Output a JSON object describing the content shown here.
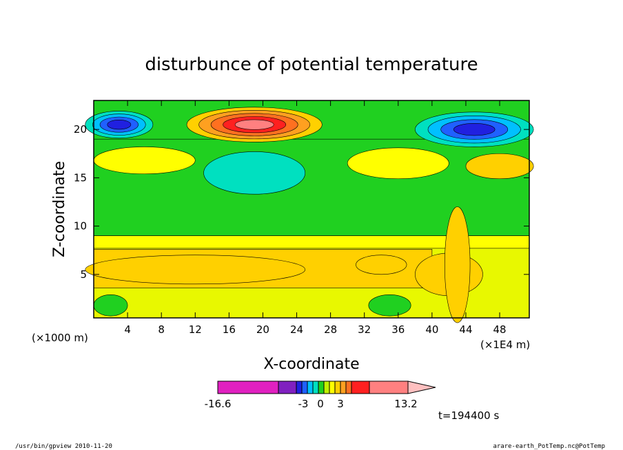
{
  "chart_data": {
    "type": "heatmap",
    "title": "disturbunce of potential temperature",
    "xlabel": "X-coordinate",
    "ylabel": "Z-coordinate",
    "x_unit": "(×1000 m)",
    "x_scale_note": "(×1E4 m)",
    "time_label": "t=194400 s",
    "xlim": [
      0,
      51.5
    ],
    "ylim": [
      0.5,
      23
    ],
    "x_ticks": [
      4,
      8,
      12,
      16,
      20,
      24,
      28,
      32,
      36,
      40,
      44,
      48
    ],
    "y_ticks": [
      5,
      10,
      15,
      20
    ],
    "colorbar": {
      "min_label": "-16.6",
      "max_label": "13.2",
      "tick_labels": [
        "-3",
        "0",
        "3"
      ],
      "colors": [
        "#e020c0",
        "#8020c0",
        "#2020e0",
        "#2060ff",
        "#00c0ff",
        "#00e0c0",
        "#20d020",
        "#c0f000",
        "#ffff00",
        "#ffd000",
        "#ffa020",
        "#ff7020",
        "#ff2020",
        "#ff8080",
        "#ffc0c0"
      ]
    },
    "features": [
      {
        "name": "warm-core",
        "x": 19,
        "z": 20.5,
        "rx": 8,
        "rz": 1.8,
        "value": 10
      },
      {
        "name": "cold-upper-left",
        "x": 3,
        "z": 20.5,
        "rx": 4,
        "rz": 1.4,
        "value": -8
      },
      {
        "name": "cold-upper-right",
        "x": 45,
        "z": 20,
        "rx": 7,
        "rz": 1.8,
        "value": -8
      },
      {
        "name": "cold-mid",
        "x": 19,
        "z": 15.5,
        "rx": 6,
        "rz": 2.2,
        "value": -2
      },
      {
        "name": "warm-low",
        "x": 12,
        "z": 5.5,
        "rx": 13,
        "rz": 1.5,
        "value": 1.5
      },
      {
        "name": "convective-plume",
        "x": 43,
        "z": 6,
        "rx": 1.5,
        "rz": 6,
        "value": 2
      }
    ]
  },
  "footer": {
    "left": "/usr/bin/gpview  2010-11-20",
    "right": "arare-earth_PotTemp.nc@PotTemp"
  }
}
